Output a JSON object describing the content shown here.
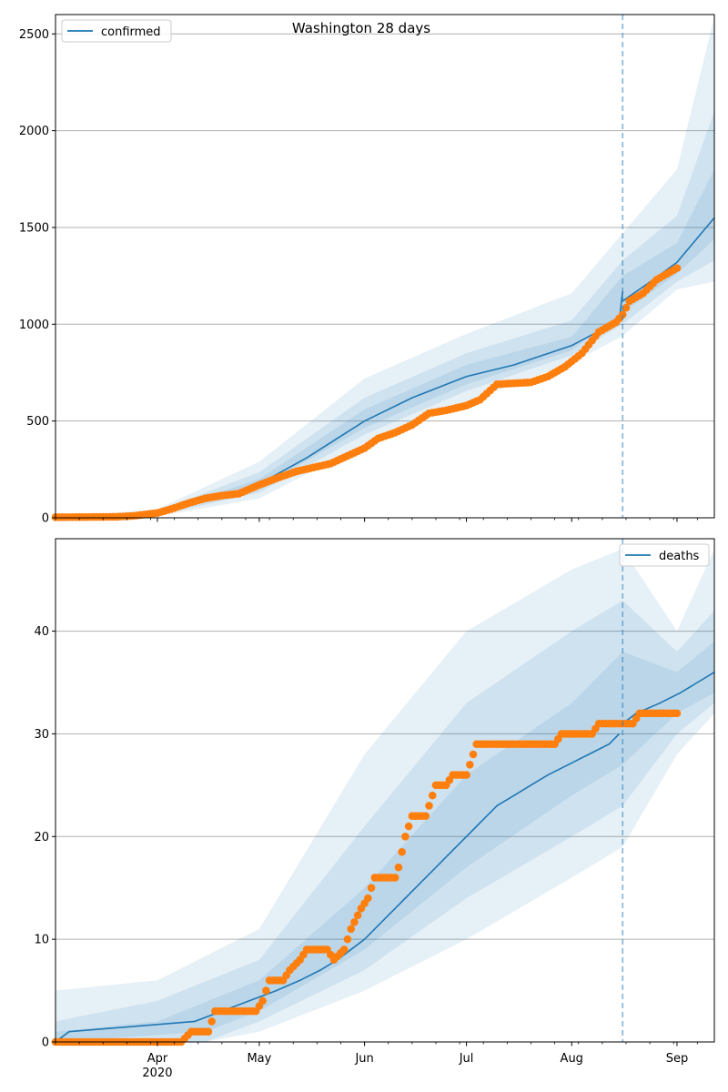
{
  "title": "Washington 28 days",
  "colors": {
    "model": "#1f77b4",
    "observed": "#ff7f0e",
    "band": "#1f77b4",
    "grid": "#b0b0b0"
  },
  "x_axis": {
    "month_labels": [
      "Apr",
      "May",
      "Jun",
      "Jul",
      "Aug",
      "Sep"
    ],
    "year_label": "2020"
  },
  "chart_data": [
    {
      "type": "line",
      "title": "Washington 28 days",
      "legend": {
        "label": "confirmed",
        "position": "top-left"
      },
      "xlim": [
        "2020-03-02",
        "2020-09-12"
      ],
      "ylim": [
        0,
        2600
      ],
      "y_ticks": [
        0,
        500,
        1000,
        1500,
        2000,
        2500
      ],
      "grid": "horizontal",
      "forecast_start": "2020-08-16",
      "model_mean": [
        [
          "2020-03-02",
          0
        ],
        [
          "2020-03-21",
          2
        ],
        [
          "2020-04-01",
          22
        ],
        [
          "2020-04-15",
          85
        ],
        [
          "2020-05-01",
          175
        ],
        [
          "2020-05-15",
          310
        ],
        [
          "2020-06-01",
          500
        ],
        [
          "2020-06-15",
          620
        ],
        [
          "2020-07-01",
          730
        ],
        [
          "2020-07-15",
          790
        ],
        [
          "2020-08-01",
          890
        ],
        [
          "2020-08-15",
          1020
        ],
        [
          "2020-08-16",
          1170
        ]
      ],
      "forecast_mean": [
        [
          "2020-08-16",
          1120
        ],
        [
          "2020-08-25",
          1230
        ],
        [
          "2020-09-01",
          1320
        ],
        [
          "2020-09-12",
          1550
        ]
      ],
      "bands": [
        {
          "lower": [
            [
              "2020-03-02",
              0
            ],
            [
              "2020-04-01",
              8
            ],
            [
              "2020-05-01",
              100
            ],
            [
              "2020-06-01",
              380
            ],
            [
              "2020-07-01",
              600
            ],
            [
              "2020-08-01",
              800
            ],
            [
              "2020-08-16",
              940
            ],
            [
              "2020-09-01",
              1180
            ],
            [
              "2020-09-12",
              1220
            ]
          ],
          "upper": [
            [
              "2020-03-02",
              0
            ],
            [
              "2020-04-01",
              45
            ],
            [
              "2020-05-01",
              290
            ],
            [
              "2020-06-01",
              720
            ],
            [
              "2020-07-01",
              950
            ],
            [
              "2020-08-01",
              1160
            ],
            [
              "2020-08-16",
              1470
            ],
            [
              "2020-09-01",
              1800
            ],
            [
              "2020-09-12",
              2590
            ]
          ]
        },
        {
          "lower": [
            [
              "2020-03-02",
              0
            ],
            [
              "2020-04-01",
              13
            ],
            [
              "2020-05-01",
              130
            ],
            [
              "2020-06-01",
              430
            ],
            [
              "2020-07-01",
              655
            ],
            [
              "2020-08-01",
              840
            ],
            [
              "2020-08-16",
              1000
            ],
            [
              "2020-09-01",
              1220
            ],
            [
              "2020-09-12",
              1330
            ]
          ],
          "upper": [
            [
              "2020-03-02",
              0
            ],
            [
              "2020-04-01",
              35
            ],
            [
              "2020-05-01",
              235
            ],
            [
              "2020-06-01",
              620
            ],
            [
              "2020-07-01",
              850
            ],
            [
              "2020-08-01",
              1020
            ],
            [
              "2020-08-16",
              1330
            ],
            [
              "2020-09-01",
              1560
            ],
            [
              "2020-09-12",
              2100
            ]
          ]
        },
        {
          "lower": [
            [
              "2020-03-02",
              0
            ],
            [
              "2020-04-01",
              17
            ],
            [
              "2020-05-01",
              155
            ],
            [
              "2020-06-01",
              465
            ],
            [
              "2020-07-01",
              690
            ],
            [
              "2020-08-01",
              865
            ],
            [
              "2020-08-16",
              1060
            ],
            [
              "2020-09-01",
              1260
            ],
            [
              "2020-09-12",
              1440
            ]
          ],
          "upper": [
            [
              "2020-03-02",
              0
            ],
            [
              "2020-04-01",
              28
            ],
            [
              "2020-05-01",
              200
            ],
            [
              "2020-06-01",
              560
            ],
            [
              "2020-07-01",
              790
            ],
            [
              "2020-08-01",
              935
            ],
            [
              "2020-08-16",
              1250
            ],
            [
              "2020-09-01",
              1420
            ],
            [
              "2020-09-12",
              1800
            ]
          ]
        }
      ],
      "observed": [
        [
          "2020-03-02",
          3
        ],
        [
          "2020-03-20",
          5
        ],
        [
          "2020-03-25",
          10
        ],
        [
          "2020-04-01",
          25
        ],
        [
          "2020-04-05",
          45
        ],
        [
          "2020-04-10",
          75
        ],
        [
          "2020-04-15",
          100
        ],
        [
          "2020-04-20",
          115
        ],
        [
          "2020-04-25",
          125
        ],
        [
          "2020-05-01",
          170
        ],
        [
          "2020-05-07",
          210
        ],
        [
          "2020-05-12",
          240
        ],
        [
          "2020-05-17",
          260
        ],
        [
          "2020-05-22",
          280
        ],
        [
          "2020-05-27",
          320
        ],
        [
          "2020-06-01",
          360
        ],
        [
          "2020-06-05",
          410
        ],
        [
          "2020-06-10",
          440
        ],
        [
          "2020-06-15",
          480
        ],
        [
          "2020-06-20",
          540
        ],
        [
          "2020-06-25",
          555
        ],
        [
          "2020-07-01",
          580
        ],
        [
          "2020-07-05",
          610
        ],
        [
          "2020-07-10",
          690
        ],
        [
          "2020-07-15",
          695
        ],
        [
          "2020-07-20",
          700
        ],
        [
          "2020-07-25",
          730
        ],
        [
          "2020-07-30",
          780
        ],
        [
          "2020-08-04",
          850
        ],
        [
          "2020-08-09",
          960
        ],
        [
          "2020-08-14",
          1010
        ],
        [
          "2020-08-16",
          1050
        ],
        [
          "2020-08-18",
          1120
        ],
        [
          "2020-08-22",
          1160
        ],
        [
          "2020-08-26",
          1230
        ],
        [
          "2020-08-30",
          1270
        ],
        [
          "2020-09-01",
          1290
        ]
      ]
    },
    {
      "type": "line",
      "legend": {
        "label": "deaths",
        "position": "top-right"
      },
      "xlim": [
        "2020-03-02",
        "2020-09-12"
      ],
      "ylim": [
        0,
        49
      ],
      "y_ticks": [
        0,
        10,
        20,
        30,
        40
      ],
      "grid": "horizontal",
      "forecast_start": "2020-08-16",
      "model_mean": [
        [
          "2020-03-02",
          0
        ],
        [
          "2020-03-06",
          1
        ],
        [
          "2020-04-12",
          2
        ],
        [
          "2020-04-20",
          3
        ],
        [
          "2020-04-28",
          4
        ],
        [
          "2020-05-06",
          5
        ],
        [
          "2020-05-13",
          6
        ],
        [
          "2020-05-19",
          7
        ],
        [
          "2020-05-24",
          8
        ],
        [
          "2020-05-28",
          9
        ],
        [
          "2020-06-01",
          10
        ],
        [
          "2020-06-04",
          11
        ],
        [
          "2020-06-07",
          12
        ],
        [
          "2020-06-10",
          13
        ],
        [
          "2020-06-13",
          14
        ],
        [
          "2020-06-16",
          15
        ],
        [
          "2020-06-19",
          16
        ],
        [
          "2020-06-22",
          17
        ],
        [
          "2020-06-25",
          18
        ],
        [
          "2020-06-28",
          19
        ],
        [
          "2020-07-01",
          20
        ],
        [
          "2020-07-04",
          21
        ],
        [
          "2020-07-07",
          22
        ],
        [
          "2020-07-10",
          23
        ],
        [
          "2020-07-15",
          24
        ],
        [
          "2020-07-20",
          25
        ],
        [
          "2020-07-25",
          26
        ],
        [
          "2020-07-31",
          27
        ],
        [
          "2020-08-06",
          28
        ],
        [
          "2020-08-12",
          29
        ],
        [
          "2020-08-15",
          30
        ]
      ],
      "forecast_mean": [
        [
          "2020-08-16",
          31
        ],
        [
          "2020-08-20",
          32
        ],
        [
          "2020-08-27",
          33
        ],
        [
          "2020-09-02",
          34
        ],
        [
          "2020-09-07",
          35
        ],
        [
          "2020-09-12",
          36
        ]
      ],
      "bands": [
        {
          "lower": [
            [
              "2020-03-02",
              0
            ],
            [
              "2020-04-15",
              0
            ],
            [
              "2020-05-01",
              1
            ],
            [
              "2020-06-01",
              5
            ],
            [
              "2020-07-01",
              10
            ],
            [
              "2020-08-01",
              16
            ],
            [
              "2020-08-16",
              19
            ],
            [
              "2020-09-01",
              28
            ],
            [
              "2020-09-12",
              32
            ]
          ],
          "upper": [
            [
              "2020-03-02",
              5
            ],
            [
              "2020-04-01",
              6
            ],
            [
              "2020-05-01",
              11
            ],
            [
              "2020-06-01",
              28
            ],
            [
              "2020-07-01",
              40
            ],
            [
              "2020-08-01",
              46
            ],
            [
              "2020-08-16",
              48
            ],
            [
              "2020-09-01",
              40
            ],
            [
              "2020-09-12",
              48
            ]
          ]
        },
        {
          "lower": [
            [
              "2020-03-02",
              0
            ],
            [
              "2020-04-15",
              0
            ],
            [
              "2020-05-01",
              2
            ],
            [
              "2020-06-01",
              7
            ],
            [
              "2020-07-01",
              14
            ],
            [
              "2020-08-01",
              20
            ],
            [
              "2020-08-16",
              23
            ],
            [
              "2020-09-01",
              30
            ],
            [
              "2020-09-12",
              33
            ]
          ],
          "upper": [
            [
              "2020-03-02",
              2
            ],
            [
              "2020-04-01",
              4
            ],
            [
              "2020-05-01",
              8
            ],
            [
              "2020-06-01",
              21
            ],
            [
              "2020-07-01",
              33
            ],
            [
              "2020-08-01",
              40
            ],
            [
              "2020-08-16",
              43
            ],
            [
              "2020-09-01",
              38
            ],
            [
              "2020-09-12",
              42
            ]
          ]
        },
        {
          "lower": [
            [
              "2020-03-02",
              0
            ],
            [
              "2020-04-15",
              1
            ],
            [
              "2020-05-01",
              3
            ],
            [
              "2020-06-01",
              9
            ],
            [
              "2020-07-01",
              17
            ],
            [
              "2020-08-01",
              24
            ],
            [
              "2020-08-16",
              27
            ],
            [
              "2020-09-01",
              32
            ],
            [
              "2020-09-12",
              34
            ]
          ],
          "upper": [
            [
              "2020-03-02",
              1
            ],
            [
              "2020-04-01",
              2
            ],
            [
              "2020-05-01",
              6
            ],
            [
              "2020-06-01",
              15
            ],
            [
              "2020-07-01",
              26
            ],
            [
              "2020-08-01",
              33
            ],
            [
              "2020-08-16",
              38
            ],
            [
              "2020-09-01",
              36
            ],
            [
              "2020-09-12",
              39
            ]
          ]
        }
      ],
      "observed": [
        [
          "2020-03-02",
          0
        ],
        [
          "2020-04-08",
          0
        ],
        [
          "2020-04-11",
          1
        ],
        [
          "2020-04-16",
          1
        ],
        [
          "2020-04-18",
          3
        ],
        [
          "2020-04-30",
          3
        ],
        [
          "2020-05-02",
          4
        ],
        [
          "2020-05-04",
          6
        ],
        [
          "2020-05-08",
          6
        ],
        [
          "2020-05-10",
          7
        ],
        [
          "2020-05-13",
          8
        ],
        [
          "2020-05-15",
          9
        ],
        [
          "2020-05-21",
          9
        ],
        [
          "2020-05-23",
          8
        ],
        [
          "2020-05-26",
          9
        ],
        [
          "2020-05-28",
          11
        ],
        [
          "2020-05-31",
          13
        ],
        [
          "2020-06-02",
          14
        ],
        [
          "2020-06-04",
          16
        ],
        [
          "2020-06-10",
          16
        ],
        [
          "2020-06-11",
          17
        ],
        [
          "2020-06-13",
          20
        ],
        [
          "2020-06-15",
          22
        ],
        [
          "2020-06-19",
          22
        ],
        [
          "2020-06-21",
          24
        ],
        [
          "2020-06-22",
          25
        ],
        [
          "2020-06-25",
          25
        ],
        [
          "2020-06-27",
          26
        ],
        [
          "2020-07-01",
          26
        ],
        [
          "2020-07-02",
          27
        ],
        [
          "2020-07-04",
          29
        ],
        [
          "2020-07-27",
          29
        ],
        [
          "2020-07-29",
          30
        ],
        [
          "2020-08-07",
          30
        ],
        [
          "2020-08-09",
          31
        ],
        [
          "2020-08-19",
          31
        ],
        [
          "2020-08-21",
          32
        ],
        [
          "2020-09-01",
          32
        ]
      ]
    }
  ]
}
